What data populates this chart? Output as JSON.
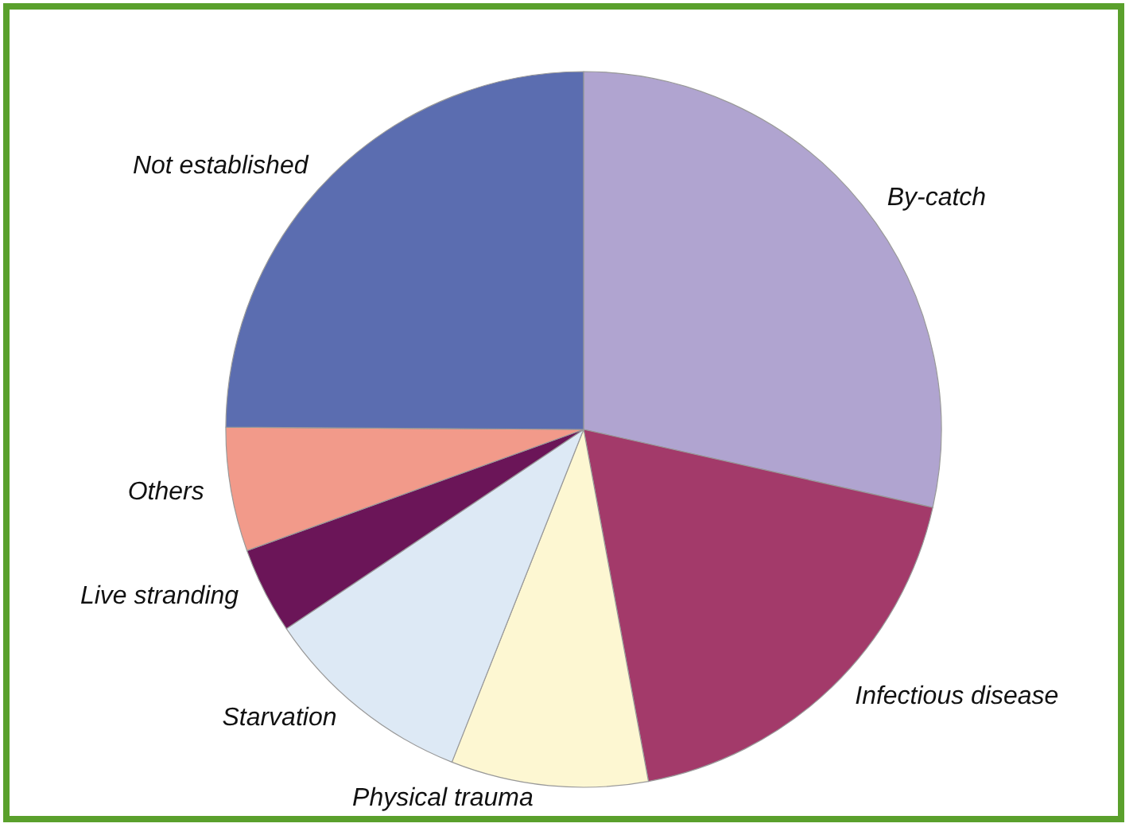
{
  "chart_data": {
    "type": "pie",
    "categories": [
      "By-catch",
      "Infectious disease",
      "Physical trauma",
      "Starvation",
      "Live stranding",
      "Others",
      "Not established"
    ],
    "values": [
      28.5,
      18.6,
      8.9,
      9.6,
      3.9,
      5.6,
      24.9
    ],
    "colors": [
      "#b0a4d0",
      "#a33a6a",
      "#fdf7d2",
      "#dde9f5",
      "#6b1558",
      "#f29a8a",
      "#5b6db0"
    ]
  }
}
